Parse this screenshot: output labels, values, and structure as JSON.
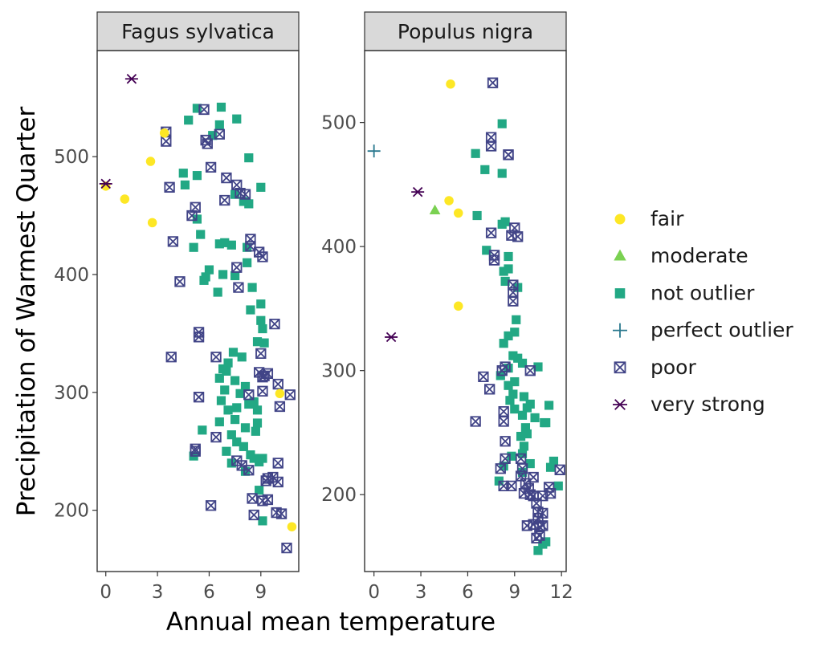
{
  "chart_data": {
    "type": "scatter",
    "xlabel": "Annual mean temperature",
    "ylabel": "Precipitation of Warmest Quarter",
    "legend_position": "right",
    "grid": false,
    "categories": [
      {
        "name": "fair",
        "color": "#FDE725",
        "shape": "circle"
      },
      {
        "name": "moderate",
        "color": "#7AD151",
        "shape": "triangle"
      },
      {
        "name": "not outlier",
        "color": "#22A884",
        "shape": "square"
      },
      {
        "name": "perfect outlier",
        "color": "#2A788E",
        "shape": "plus"
      },
      {
        "name": "poor",
        "color": "#414487",
        "shape": "square-cross"
      },
      {
        "name": "very strong",
        "color": "#440154",
        "shape": "asterisk"
      }
    ],
    "panels": [
      {
        "title": "Fagus sylvatica",
        "xlim": [
          -0.5,
          11.2
        ],
        "ylim": [
          148,
          590
        ],
        "xticks": [
          0,
          3,
          6,
          9
        ],
        "yticks": [
          200,
          300,
          400,
          500
        ],
        "points": {
          "fair": [
            [
              0,
              475
            ],
            [
              1.1,
              464
            ],
            [
              2.6,
              496
            ],
            [
              2.7,
              444
            ],
            [
              3.4,
              520
            ],
            [
              10.1,
              299
            ],
            [
              10.8,
              186
            ]
          ],
          "very strong": [
            [
              1.5,
              566
            ],
            [
              0,
              477
            ]
          ],
          "poor": [
            [
              5.7,
              540
            ],
            [
              3.5,
              521
            ],
            [
              3.5,
              513
            ],
            [
              5.8,
              514
            ],
            [
              5.9,
              511
            ],
            [
              6.6,
              519
            ],
            [
              6.1,
              491
            ],
            [
              3.7,
              474
            ],
            [
              7.0,
              482
            ],
            [
              7.6,
              476
            ],
            [
              7.8,
              469
            ],
            [
              8.1,
              468
            ],
            [
              5.2,
              457
            ],
            [
              5.0,
              450
            ],
            [
              6.9,
              463
            ],
            [
              3.9,
              428
            ],
            [
              8.4,
              430
            ],
            [
              8.4,
              424
            ],
            [
              8.9,
              419
            ],
            [
              9.1,
              415
            ],
            [
              4.3,
              394
            ],
            [
              7.6,
              406
            ],
            [
              7.7,
              389
            ],
            [
              5.4,
              351
            ],
            [
              5.4,
              347
            ],
            [
              9.8,
              358
            ],
            [
              3.8,
              330
            ],
            [
              6.4,
              330
            ],
            [
              9.0,
              333
            ],
            [
              8.9,
              317
            ],
            [
              9.2,
              314
            ],
            [
              9.4,
              316
            ],
            [
              9.1,
              313
            ],
            [
              10.0,
              307
            ],
            [
              8.3,
              298
            ],
            [
              9.1,
              301
            ],
            [
              5.4,
              296
            ],
            [
              10.1,
              288
            ],
            [
              10.7,
              298
            ],
            [
              6.4,
              262
            ],
            [
              5.2,
              252
            ],
            [
              5.2,
              250
            ],
            [
              7.6,
              242
            ],
            [
              7.9,
              238
            ],
            [
              8.3,
              234
            ],
            [
              10.0,
              240
            ],
            [
              9.4,
              227
            ],
            [
              9.7,
              228
            ],
            [
              10.0,
              224
            ],
            [
              9.3,
              225
            ],
            [
              6.1,
              204
            ],
            [
              8.5,
              210
            ],
            [
              9.1,
              208
            ],
            [
              9.4,
              209
            ],
            [
              9.9,
              198
            ],
            [
              10.2,
              197
            ],
            [
              8.6,
              196
            ],
            [
              10.5,
              168
            ]
          ],
          "not outlier": [
            [
              5.3,
              541
            ],
            [
              6.7,
              542
            ],
            [
              7.6,
              532
            ],
            [
              4.8,
              531
            ],
            [
              6.6,
              527
            ],
            [
              6.2,
              518
            ],
            [
              8.3,
              499
            ],
            [
              4.5,
              486
            ],
            [
              5.3,
              484
            ],
            [
              4.6,
              476
            ],
            [
              7.5,
              468
            ],
            [
              8.0,
              462
            ],
            [
              8.3,
              460
            ],
            [
              9.0,
              474
            ],
            [
              5.3,
              447
            ],
            [
              5.5,
              434
            ],
            [
              6.6,
              426
            ],
            [
              6.9,
              427
            ],
            [
              7.3,
              425
            ],
            [
              8.2,
              423
            ],
            [
              5.1,
              423
            ],
            [
              8.2,
              410
            ],
            [
              7.5,
              399
            ],
            [
              6.0,
              404
            ],
            [
              5.8,
              398
            ],
            [
              6.8,
              400
            ],
            [
              6.5,
              385
            ],
            [
              5.7,
              395
            ],
            [
              8.5,
              389
            ],
            [
              9.0,
              375
            ],
            [
              8.4,
              370
            ],
            [
              9.0,
              361
            ],
            [
              9.1,
              354
            ],
            [
              8.8,
              343
            ],
            [
              9.2,
              342
            ],
            [
              7.4,
              334
            ],
            [
              7.9,
              330
            ],
            [
              7.1,
              325
            ],
            [
              6.8,
              320
            ],
            [
              6.6,
              312
            ],
            [
              7.0,
              318
            ],
            [
              7.5,
              310
            ],
            [
              8.1,
              305
            ],
            [
              6.9,
              302
            ],
            [
              8.6,
              292
            ],
            [
              8.3,
              290
            ],
            [
              8.8,
              285
            ],
            [
              7.6,
              287
            ],
            [
              7.1,
              285
            ],
            [
              7.5,
              277
            ],
            [
              8.1,
              270
            ],
            [
              8.7,
              267
            ],
            [
              8.8,
              274
            ],
            [
              6.7,
              293
            ],
            [
              6.6,
              275
            ],
            [
              5.6,
              268
            ],
            [
              7.3,
              264
            ],
            [
              7.6,
              258
            ],
            [
              8.0,
              254
            ],
            [
              7.0,
              250
            ],
            [
              8.4,
              247
            ],
            [
              8.6,
              244
            ],
            [
              8.9,
              241
            ],
            [
              9.1,
              244
            ],
            [
              7.3,
              240
            ],
            [
              8.1,
              233
            ],
            [
              8.9,
              217
            ],
            [
              9.1,
              191
            ],
            [
              5.1,
              246
            ],
            [
              7.8,
              299
            ]
          ]
        }
      },
      {
        "title": "Populus nigra",
        "xlim": [
          -0.6,
          12.3
        ],
        "ylim": [
          138,
          558
        ],
        "xticks": [
          0,
          3,
          6,
          9,
          12
        ],
        "yticks": [
          200,
          300,
          400,
          500
        ],
        "points": {
          "fair": [
            [
              4.9,
              531
            ],
            [
              4.8,
              437
            ],
            [
              5.4,
              427
            ],
            [
              5.4,
              352
            ]
          ],
          "moderate": [
            [
              3.9,
              429
            ]
          ],
          "perfect outlier": [
            [
              0,
              477
            ]
          ],
          "very strong": [
            [
              2.8,
              444
            ],
            [
              1.1,
              327
            ]
          ],
          "poor": [
            [
              7.6,
              532
            ],
            [
              7.5,
              488
            ],
            [
              7.5,
              481
            ],
            [
              8.6,
              474
            ],
            [
              8.6,
              474
            ],
            [
              7.5,
              411
            ],
            [
              8.8,
              409
            ],
            [
              9.2,
              408
            ],
            [
              9.0,
              415
            ],
            [
              7.7,
              393
            ],
            [
              7.7,
              389
            ],
            [
              8.9,
              369
            ],
            [
              8.9,
              363
            ],
            [
              8.9,
              356
            ],
            [
              8.2,
              300
            ],
            [
              8.4,
              303
            ],
            [
              10.0,
              300
            ],
            [
              7.0,
              295
            ],
            [
              7.4,
              285
            ],
            [
              6.5,
              259
            ],
            [
              8.3,
              267
            ],
            [
              8.3,
              259
            ],
            [
              8.4,
              243
            ],
            [
              8.4,
              229
            ],
            [
              8.1,
              221
            ],
            [
              8.3,
              207
            ],
            [
              8.8,
              207
            ],
            [
              9.4,
              229
            ],
            [
              9.5,
              221
            ],
            [
              9.4,
              215
            ],
            [
              9.6,
              201
            ],
            [
              9.7,
              209
            ],
            [
              9.9,
              205
            ],
            [
              10.0,
              200
            ],
            [
              10.2,
              214
            ],
            [
              10.2,
              199
            ],
            [
              10.4,
              193
            ],
            [
              10.5,
              186
            ],
            [
              10.5,
              181
            ],
            [
              10.6,
              174
            ],
            [
              10.6,
              167
            ],
            [
              10.8,
              175
            ],
            [
              10.8,
              185
            ],
            [
              10.8,
              199
            ],
            [
              11.2,
              206
            ],
            [
              11.3,
              201
            ],
            [
              11.9,
              220
            ],
            [
              9.8,
              175
            ],
            [
              10.2,
              176
            ],
            [
              10.4,
              165
            ]
          ],
          "not outlier": [
            [
              6.5,
              475
            ],
            [
              7.1,
              462
            ],
            [
              8.2,
              499
            ],
            [
              8.2,
              459
            ],
            [
              6.6,
              425
            ],
            [
              8.2,
              418
            ],
            [
              8.4,
              420
            ],
            [
              7.2,
              397
            ],
            [
              8.6,
              392
            ],
            [
              8.6,
              382
            ],
            [
              8.3,
              380
            ],
            [
              8.4,
              372
            ],
            [
              9.2,
              367
            ],
            [
              9.1,
              341
            ],
            [
              8.6,
              328
            ],
            [
              9.0,
              331
            ],
            [
              8.3,
              322
            ],
            [
              8.9,
              312
            ],
            [
              9.2,
              310
            ],
            [
              8.6,
              302
            ],
            [
              9.5,
              306
            ],
            [
              8.1,
              296
            ],
            [
              9.0,
              291
            ],
            [
              8.9,
              281
            ],
            [
              8.6,
              288
            ],
            [
              8.7,
              276
            ],
            [
              9.0,
              269
            ],
            [
              9.6,
              279
            ],
            [
              9.8,
              270
            ],
            [
              10.0,
              273
            ],
            [
              9.5,
              264
            ],
            [
              10.3,
              262
            ],
            [
              10.5,
              303
            ],
            [
              11.2,
              272
            ],
            [
              10.9,
              258
            ],
            [
              11.0,
              258
            ],
            [
              9.7,
              254
            ],
            [
              9.4,
              247
            ],
            [
              9.8,
              249
            ],
            [
              8.8,
              231
            ],
            [
              8.3,
              223
            ],
            [
              9.5,
              218
            ],
            [
              8.0,
              211
            ],
            [
              10.0,
              225
            ],
            [
              11.5,
              227
            ],
            [
              11.3,
              222
            ],
            [
              11.8,
              207
            ],
            [
              11.0,
              162
            ],
            [
              10.5,
              155
            ],
            [
              10.8,
              160
            ],
            [
              9.6,
              239
            ],
            [
              9.5,
              233
            ]
          ]
        }
      }
    ]
  }
}
